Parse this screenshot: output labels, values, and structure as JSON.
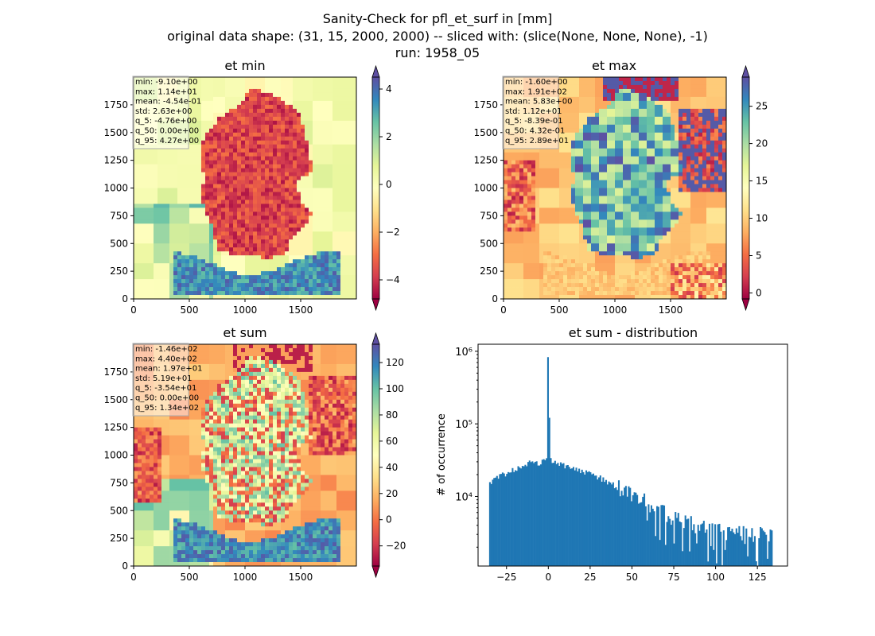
{
  "figure": {
    "title_lines": [
      "Sanity-Check for pfl_et_surf in [mm]",
      "original data shape: (31, 15, 2000, 2000) -- sliced with: (slice(None, None, None), -1)",
      "run: 1958_05"
    ]
  },
  "chart_data": [
    {
      "type": "heatmap",
      "title": "et min",
      "x_ticks": [
        "0",
        "500",
        "1000",
        "1500"
      ],
      "y_ticks": [
        "0",
        "250",
        "500",
        "750",
        "1000",
        "1250",
        "1500",
        "1750"
      ],
      "xlim": [
        0,
        2000
      ],
      "ylim": [
        0,
        2000
      ],
      "colormap": "Spectral",
      "colorbar": {
        "ticks": [
          "−4",
          "−2",
          "0",
          "2",
          "4"
        ],
        "tick_values": [
          -4,
          -2,
          0,
          2,
          4
        ],
        "range": [
          -4.8,
          4.5
        ],
        "extend": "both"
      },
      "stats": [
        "min: -9.10e+00",
        "max: 1.14e+01",
        "mean: -4.54e-01",
        "std: 2.63e+00",
        "q_5: -4.76e+00",
        "q_50: 0.00e+00",
        "q_95: 4.27e+00"
      ],
      "pattern": "min"
    },
    {
      "type": "heatmap",
      "title": "et max",
      "x_ticks": [
        "0",
        "500",
        "1000",
        "1500"
      ],
      "y_ticks": [
        "0",
        "250",
        "500",
        "750",
        "1000",
        "1250",
        "1500",
        "1750"
      ],
      "xlim": [
        0,
        2000
      ],
      "ylim": [
        0,
        2000
      ],
      "colormap": "Spectral",
      "colorbar": {
        "ticks": [
          "0",
          "5",
          "10",
          "15",
          "20",
          "25"
        ],
        "tick_values": [
          0,
          5,
          10,
          15,
          20,
          25
        ],
        "range": [
          -0.8,
          28.9
        ],
        "extend": "both"
      },
      "stats": [
        "min: -1.60e+00",
        "max: 1.91e+02",
        "mean: 5.83e+00",
        "std: 1.12e+01",
        "q_5: -8.39e-01",
        "q_50: 4.32e-01",
        "q_95: 2.89e+01"
      ],
      "pattern": "max"
    },
    {
      "type": "heatmap",
      "title": "et sum",
      "x_ticks": [
        "0",
        "500",
        "1000",
        "1500"
      ],
      "y_ticks": [
        "0",
        "250",
        "500",
        "750",
        "1000",
        "1250",
        "1500",
        "1750"
      ],
      "xlim": [
        0,
        2000
      ],
      "ylim": [
        0,
        2000
      ],
      "colormap": "Spectral",
      "colorbar": {
        "ticks": [
          "−20",
          "0",
          "20",
          "40",
          "60",
          "80",
          "100",
          "120"
        ],
        "tick_values": [
          -20,
          0,
          20,
          40,
          60,
          80,
          100,
          120
        ],
        "range": [
          -35.4,
          134
        ],
        "extend": "both"
      },
      "stats": [
        "min: -1.46e+02",
        "max: 4.40e+02",
        "mean: 1.97e+01",
        "std: 5.19e+01",
        "q_5: -3.54e+01",
        "q_50: 0.00e+00",
        "q_95: 1.34e+02"
      ],
      "pattern": "sum"
    },
    {
      "type": "bar",
      "title": "et sum - distribution",
      "ylabel": "# of occurrence",
      "yscale": "log",
      "xlim": [
        -42,
        143
      ],
      "ylim": [
        1100,
        1250000
      ],
      "x_ticks": [
        "−25",
        "0",
        "25",
        "50",
        "75",
        "100",
        "125"
      ],
      "x_tick_values": [
        -25,
        0,
        25,
        50,
        75,
        100,
        125
      ],
      "y_ticks": [
        "10⁴",
        "10⁵",
        "10⁶"
      ],
      "y_tick_values": [
        10000,
        100000,
        1000000
      ],
      "bar_color": "#1f77b4",
      "bins": {
        "start": -35.4,
        "end": 134,
        "count": 200
      },
      "envelope": [
        [
          -35,
          15500
        ],
        [
          -30,
          18500
        ],
        [
          -20,
          24000
        ],
        [
          -10,
          30000
        ],
        [
          -5,
          28500
        ],
        [
          -1,
          36000
        ],
        [
          0,
          830000
        ],
        [
          1,
          32000
        ],
        [
          5,
          28500
        ],
        [
          10,
          26000
        ],
        [
          20,
          22000
        ],
        [
          30,
          18500
        ],
        [
          40,
          14000
        ],
        [
          50,
          11000
        ],
        [
          60,
          8000
        ],
        [
          70,
          6000
        ],
        [
          80,
          4800
        ],
        [
          90,
          4000
        ],
        [
          100,
          3500
        ],
        [
          110,
          3200
        ],
        [
          120,
          3000
        ],
        [
          134,
          3300
        ]
      ]
    }
  ]
}
